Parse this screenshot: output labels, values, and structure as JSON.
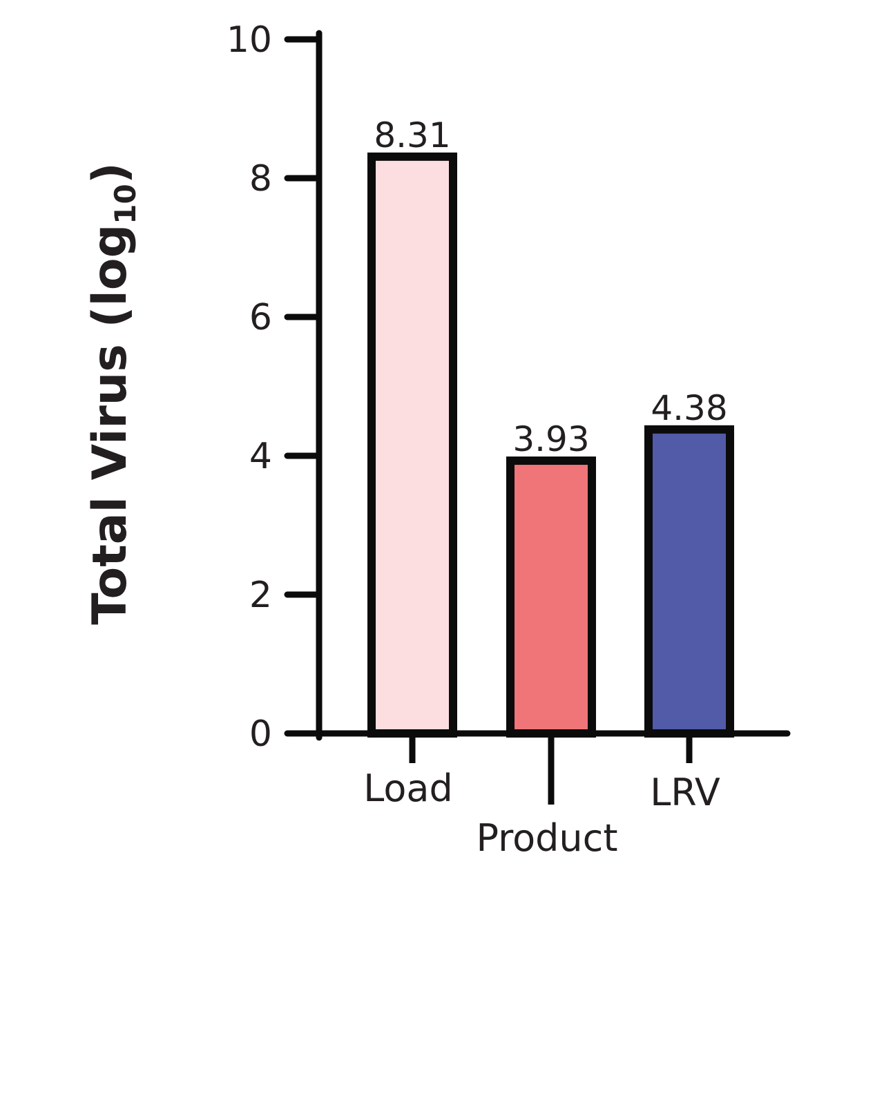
{
  "chart_data": {
    "type": "bar",
    "categories": [
      "Load",
      "Product",
      "LRV"
    ],
    "values": [
      8.31,
      3.93,
      4.38
    ],
    "value_labels": [
      "8.31",
      "3.93",
      "4.38"
    ],
    "bar_colors": [
      "#fcdde0",
      "#f07579",
      "#515ba7"
    ],
    "title": "",
    "xlabel": "",
    "ylabel": "Total Virus (log",
    "ylabel_subscript": "10",
    "ylabel_close": ")",
    "ylim": [
      0,
      10
    ],
    "yticks": [
      "0",
      "2",
      "4",
      "6",
      "8",
      "10"
    ],
    "grid": false,
    "legend": "none"
  }
}
